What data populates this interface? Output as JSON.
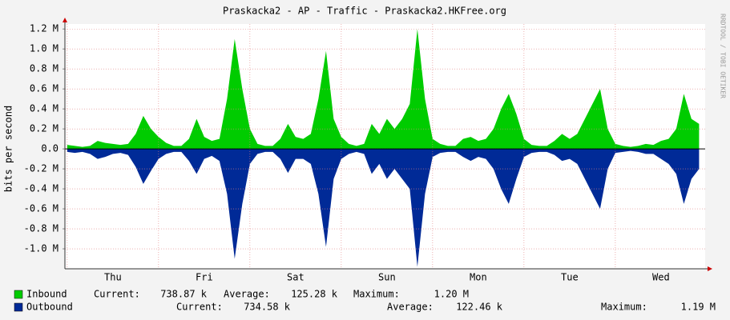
{
  "chart_data": {
    "type": "area",
    "title": "Praskacka2 - AP - Traffic - Praskacka2.HKFree.org",
    "y_label": "bits per second",
    "watermark": "RRDTOOL / TOBI OETIKER",
    "x": [
      0,
      2,
      4,
      6,
      8,
      10,
      12,
      14,
      16,
      18,
      20,
      22,
      24,
      26,
      28,
      30,
      32,
      34,
      36,
      38,
      40,
      42,
      44,
      46,
      48,
      50,
      52,
      54,
      56,
      58,
      60,
      62,
      64,
      66,
      68,
      70,
      72,
      74,
      76,
      78,
      80,
      82,
      84,
      86,
      88,
      90,
      92,
      94,
      96,
      98,
      100,
      102,
      104,
      106,
      108,
      110,
      112,
      114,
      116,
      118,
      120,
      122,
      124,
      126,
      128,
      130,
      132,
      134,
      136,
      138,
      140,
      142,
      144,
      146,
      148,
      150,
      152,
      154,
      156,
      158,
      160,
      162,
      164,
      166
    ],
    "xlim": [
      -0.6,
      167.6
    ],
    "xticks": [
      {
        "value": 12,
        "label": "Thu"
      },
      {
        "value": 36,
        "label": "Fri"
      },
      {
        "value": 60,
        "label": "Sat"
      },
      {
        "value": 84,
        "label": "Sun"
      },
      {
        "value": 108,
        "label": "Mon"
      },
      {
        "value": 132,
        "label": "Tue"
      },
      {
        "value": 156,
        "label": "Wed"
      }
    ],
    "xgrid": [
      0,
      24,
      48,
      72,
      96,
      120,
      144
    ],
    "ylim": [
      -1.2,
      1.25
    ],
    "yticks": [
      {
        "value": 1.2,
        "label": "1.2 M"
      },
      {
        "value": 1.0,
        "label": "1.0 M"
      },
      {
        "value": 0.8,
        "label": "0.8 M"
      },
      {
        "value": 0.6,
        "label": "0.6 M"
      },
      {
        "value": 0.4,
        "label": "0.4 M"
      },
      {
        "value": 0.2,
        "label": "0.2 M"
      },
      {
        "value": 0,
        "label": "0.0"
      },
      {
        "value": -0.2,
        "label": "-0.2 M"
      },
      {
        "value": -0.4,
        "label": "-0.4 M"
      },
      {
        "value": -0.6,
        "label": "-0.6 M"
      },
      {
        "value": -0.8,
        "label": "-0.8 M"
      },
      {
        "value": -1.0,
        "label": "-1.0 M"
      }
    ],
    "grid": true,
    "series": [
      {
        "name": "Inbound",
        "color": "#00cc00",
        "values": [
          0.04,
          0.03,
          0.02,
          0.03,
          0.08,
          0.06,
          0.05,
          0.04,
          0.05,
          0.15,
          0.33,
          0.2,
          0.12,
          0.06,
          0.03,
          0.03,
          0.1,
          0.3,
          0.12,
          0.08,
          0.1,
          0.5,
          1.1,
          0.6,
          0.2,
          0.05,
          0.03,
          0.03,
          0.1,
          0.25,
          0.12,
          0.1,
          0.15,
          0.5,
          0.98,
          0.3,
          0.12,
          0.05,
          0.03,
          0.05,
          0.25,
          0.15,
          0.3,
          0.2,
          0.3,
          0.45,
          1.2,
          0.5,
          0.1,
          0.05,
          0.03,
          0.03,
          0.1,
          0.12,
          0.08,
          0.1,
          0.2,
          0.4,
          0.55,
          0.35,
          0.1,
          0.04,
          0.03,
          0.03,
          0.08,
          0.15,
          0.1,
          0.15,
          0.3,
          0.45,
          0.6,
          0.2,
          0.05,
          0.03,
          0.02,
          0.03,
          0.05,
          0.04,
          0.08,
          0.1,
          0.2,
          0.55,
          0.3,
          0.25
        ],
        "stats": [
          {
            "label": "Current:",
            "value": "738.87 k"
          },
          {
            "label": "Average:",
            "value": "125.28 k"
          },
          {
            "label": "Maximum:",
            "value": "1.20 M"
          }
        ]
      },
      {
        "name": "Outbound",
        "color": "#002a97",
        "values": [
          -0.03,
          -0.04,
          -0.03,
          -0.05,
          -0.1,
          -0.08,
          -0.05,
          -0.04,
          -0.06,
          -0.18,
          -0.35,
          -0.22,
          -0.1,
          -0.05,
          -0.03,
          -0.03,
          -0.12,
          -0.25,
          -0.1,
          -0.07,
          -0.12,
          -0.45,
          -1.1,
          -0.55,
          -0.15,
          -0.05,
          -0.03,
          -0.03,
          -0.1,
          -0.24,
          -0.1,
          -0.1,
          -0.15,
          -0.45,
          -0.98,
          -0.3,
          -0.1,
          -0.05,
          -0.03,
          -0.05,
          -0.25,
          -0.15,
          -0.3,
          -0.2,
          -0.3,
          -0.4,
          -1.18,
          -0.45,
          -0.08,
          -0.04,
          -0.03,
          -0.03,
          -0.08,
          -0.12,
          -0.08,
          -0.1,
          -0.2,
          -0.4,
          -0.55,
          -0.3,
          -0.08,
          -0.04,
          -0.03,
          -0.03,
          -0.06,
          -0.12,
          -0.1,
          -0.15,
          -0.3,
          -0.45,
          -0.6,
          -0.2,
          -0.04,
          -0.03,
          -0.02,
          -0.03,
          -0.05,
          -0.05,
          -0.1,
          -0.15,
          -0.25,
          -0.55,
          -0.3,
          -0.2
        ],
        "stats": [
          {
            "label": "Current:",
            "value": "734.58 k"
          },
          {
            "label": "Average:",
            "value": "122.46 k"
          },
          {
            "label": "Maximum:",
            "value": "1.19 M"
          }
        ]
      }
    ]
  }
}
